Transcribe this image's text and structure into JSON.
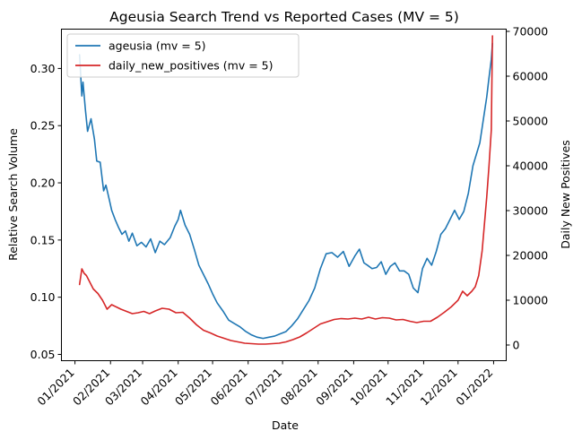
{
  "chart_data": {
    "type": "line",
    "title": "Ageusia Search Trend vs Reported Cases (MV = 5)",
    "xlabel": "Date",
    "ylabel_left": "Relative Search Volume",
    "ylabel_right": "Daily New Positives",
    "x_ticks": [
      "01/2021",
      "02/2021",
      "03/2021",
      "04/2021",
      "05/2021",
      "06/2021",
      "07/2021",
      "08/2021",
      "09/2021",
      "10/2021",
      "11/2021",
      "12/2021",
      "01/2022"
    ],
    "y_left_ticks": [
      0.05,
      0.1,
      0.15,
      0.2,
      0.25,
      0.3
    ],
    "y_left_tick_labels": [
      "0.05",
      "0.10",
      "0.15",
      "0.20",
      "0.25",
      "0.30"
    ],
    "y_right_ticks": [
      0,
      10000,
      20000,
      30000,
      40000,
      50000,
      60000,
      70000
    ],
    "y_right_tick_labels": [
      "0",
      "10000",
      "20000",
      "30000",
      "40000",
      "50000",
      "60000",
      "70000"
    ],
    "ylim_left": [
      0.0445,
      0.3344
    ],
    "ylim_right": [
      -3500,
      70500
    ],
    "xlim_days": [
      -11.8,
      376
    ],
    "grid": false,
    "legend_position": "upper-left",
    "series": [
      {
        "name": "ageusia (mv = 5)",
        "axis": "left",
        "color": "#1f77b4",
        "x": [
          "2021-01-05",
          "2021-01-07",
          "2021-01-08",
          "2021-01-10",
          "2021-01-12",
          "2021-01-15",
          "2021-01-18",
          "2021-01-20",
          "2021-01-23",
          "2021-01-26",
          "2021-01-28",
          "2021-01-31",
          "2021-02-02",
          "2021-02-05",
          "2021-02-08",
          "2021-02-11",
          "2021-02-14",
          "2021-02-17",
          "2021-02-20",
          "2021-02-24",
          "2021-02-28",
          "2021-03-04",
          "2021-03-08",
          "2021-03-12",
          "2021-03-16",
          "2021-03-20",
          "2021-03-25",
          "2021-03-29",
          "2021-04-01",
          "2021-04-03",
          "2021-04-07",
          "2021-04-11",
          "2021-04-15",
          "2021-04-19",
          "2021-04-23",
          "2021-04-27",
          "2021-05-01",
          "2021-05-05",
          "2021-05-10",
          "2021-05-15",
          "2021-05-20",
          "2021-05-25",
          "2021-05-30",
          "2021-06-04",
          "2021-06-09",
          "2021-06-14",
          "2021-06-19",
          "2021-06-24",
          "2021-06-29",
          "2021-07-04",
          "2021-07-09",
          "2021-07-14",
          "2021-07-19",
          "2021-07-24",
          "2021-07-29",
          "2021-08-03",
          "2021-08-08",
          "2021-08-13",
          "2021-08-18",
          "2021-08-23",
          "2021-08-28",
          "2021-09-02",
          "2021-09-06",
          "2021-09-10",
          "2021-09-13",
          "2021-09-17",
          "2021-09-21",
          "2021-09-25",
          "2021-09-29",
          "2021-10-03",
          "2021-10-07",
          "2021-10-11",
          "2021-10-15",
          "2021-10-19",
          "2021-10-23",
          "2021-10-27",
          "2021-10-31",
          "2021-11-04",
          "2021-11-08",
          "2021-11-12",
          "2021-11-16",
          "2021-11-20",
          "2021-11-24",
          "2021-11-28",
          "2021-12-02",
          "2021-12-06",
          "2021-12-10",
          "2021-12-14",
          "2021-12-17",
          "2021-12-20",
          "2021-12-23",
          "2021-12-26",
          "2021-12-28",
          "2021-12-30",
          "2021-12-31"
        ],
        "values": [
          0.312,
          0.276,
          0.288,
          0.265,
          0.245,
          0.256,
          0.238,
          0.219,
          0.218,
          0.193,
          0.198,
          0.185,
          0.176,
          0.168,
          0.161,
          0.155,
          0.158,
          0.149,
          0.156,
          0.145,
          0.148,
          0.144,
          0.151,
          0.139,
          0.149,
          0.146,
          0.152,
          0.162,
          0.168,
          0.176,
          0.163,
          0.155,
          0.142,
          0.128,
          0.12,
          0.112,
          0.103,
          0.095,
          0.088,
          0.08,
          0.077,
          0.074,
          0.07,
          0.067,
          0.065,
          0.064,
          0.065,
          0.066,
          0.068,
          0.07,
          0.075,
          0.081,
          0.089,
          0.097,
          0.108,
          0.125,
          0.138,
          0.139,
          0.135,
          0.14,
          0.127,
          0.136,
          0.142,
          0.13,
          0.128,
          0.125,
          0.126,
          0.131,
          0.12,
          0.127,
          0.13,
          0.123,
          0.123,
          0.12,
          0.108,
          0.104,
          0.125,
          0.134,
          0.128,
          0.14,
          0.155,
          0.16,
          0.168,
          0.176,
          0.168,
          0.175,
          0.191,
          0.215,
          0.225,
          0.235,
          0.255,
          0.275,
          0.292,
          0.308,
          0.322
        ]
      },
      {
        "name": "daily_new_positives (mv = 5)",
        "axis": "right",
        "color": "#d62728",
        "x": [
          "2021-01-05",
          "2021-01-07",
          "2021-01-09",
          "2021-01-11",
          "2021-01-14",
          "2021-01-17",
          "2021-01-21",
          "2021-01-25",
          "2021-01-29",
          "2021-02-02",
          "2021-02-06",
          "2021-02-10",
          "2021-02-15",
          "2021-02-20",
          "2021-02-25",
          "2021-03-02",
          "2021-03-07",
          "2021-03-12",
          "2021-03-18",
          "2021-03-24",
          "2021-03-30",
          "2021-04-05",
          "2021-04-11",
          "2021-04-17",
          "2021-04-23",
          "2021-04-29",
          "2021-05-05",
          "2021-05-11",
          "2021-05-17",
          "2021-05-23",
          "2021-05-29",
          "2021-06-04",
          "2021-06-10",
          "2021-06-16",
          "2021-06-22",
          "2021-06-28",
          "2021-07-04",
          "2021-07-10",
          "2021-07-16",
          "2021-07-22",
          "2021-07-28",
          "2021-08-03",
          "2021-08-09",
          "2021-08-15",
          "2021-08-21",
          "2021-08-27",
          "2021-09-02",
          "2021-09-08",
          "2021-09-14",
          "2021-09-20",
          "2021-09-26",
          "2021-10-02",
          "2021-10-08",
          "2021-10-14",
          "2021-10-20",
          "2021-10-26",
          "2021-11-01",
          "2021-11-07",
          "2021-11-13",
          "2021-11-19",
          "2021-11-25",
          "2021-12-01",
          "2021-12-05",
          "2021-12-09",
          "2021-12-13",
          "2021-12-16",
          "2021-12-19",
          "2021-12-22",
          "2021-12-24",
          "2021-12-26",
          "2021-12-28",
          "2021-12-30",
          "2021-12-31"
        ],
        "values": [
          13500,
          17000,
          16000,
          15500,
          14000,
          12500,
          11500,
          10000,
          8000,
          9000,
          8500,
          8000,
          7500,
          7000,
          7200,
          7500,
          7000,
          7600,
          8200,
          8000,
          7200,
          7300,
          6000,
          4500,
          3300,
          2700,
          2000,
          1500,
          1000,
          700,
          400,
          300,
          200,
          200,
          300,
          400,
          700,
          1200,
          1800,
          2700,
          3700,
          4700,
          5200,
          5700,
          5900,
          5800,
          6000,
          5800,
          6200,
          5800,
          6100,
          6000,
          5600,
          5700,
          5300,
          5000,
          5300,
          5300,
          6200,
          7300,
          8500,
          10000,
          12000,
          11000,
          12000,
          13000,
          15500,
          21000,
          27000,
          33000,
          40000,
          48000,
          69000
        ]
      }
    ]
  }
}
